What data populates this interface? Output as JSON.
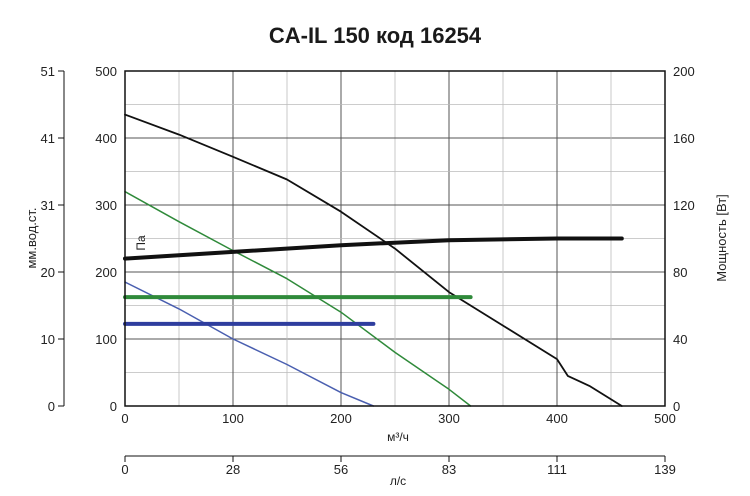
{
  "chart_data": {
    "type": "line",
    "title": "CA-IL 150 код 16254",
    "x_axis": {
      "label": "м³/ч",
      "range": [
        0,
        500
      ],
      "ticks": [
        "0",
        "100",
        "200",
        "300",
        "400",
        "500"
      ]
    },
    "x2_axis": {
      "label": "л/с",
      "range": [
        0,
        139
      ],
      "ticks": [
        "0",
        "28",
        "56",
        "83",
        "111",
        "139"
      ]
    },
    "y_axis": {
      "label": "Па",
      "range": [
        0,
        500
      ],
      "ticks": [
        "0",
        "100",
        "200",
        "300",
        "400",
        "500"
      ]
    },
    "y_axis_left_outer": {
      "label": "мм.вод.ст.",
      "range": [
        0,
        51
      ],
      "ticks": [
        "0",
        "10",
        "20",
        "31",
        "41",
        "51"
      ]
    },
    "y_axis_right": {
      "label": "Мощность [Вт]",
      "range": [
        0,
        200
      ],
      "ticks": [
        "0",
        "40",
        "80",
        "120",
        "160",
        "200"
      ]
    },
    "grid": true,
    "series": [
      {
        "role": "pressure",
        "color": "#111111",
        "x": [
          0,
          50,
          100,
          150,
          200,
          250,
          300,
          350,
          400,
          410,
          430,
          460
        ],
        "y": [
          435,
          405,
          372,
          338,
          290,
          235,
          170,
          120,
          70,
          45,
          30,
          0
        ]
      },
      {
        "role": "pressure",
        "color": "#2f8a3a",
        "x": [
          0,
          50,
          100,
          150,
          200,
          250,
          300,
          320
        ],
        "y": [
          320,
          275,
          232,
          190,
          140,
          80,
          25,
          0
        ]
      },
      {
        "role": "pressure",
        "color": "#4a5fb0",
        "x": [
          0,
          50,
          100,
          150,
          200,
          230
        ],
        "y": [
          185,
          145,
          100,
          62,
          20,
          0
        ]
      },
      {
        "role": "power",
        "color": "#111111",
        "x": [
          0,
          100,
          200,
          300,
          400,
          460
        ],
        "y": [
          88,
          92,
          96,
          99,
          100,
          100
        ]
      },
      {
        "role": "power",
        "color": "#2f8a3a",
        "x": [
          0,
          320
        ],
        "y": [
          65,
          65
        ]
      },
      {
        "role": "power",
        "color": "#2e3d9e",
        "x": [
          0,
          230
        ],
        "y": [
          49,
          49
        ]
      }
    ]
  }
}
